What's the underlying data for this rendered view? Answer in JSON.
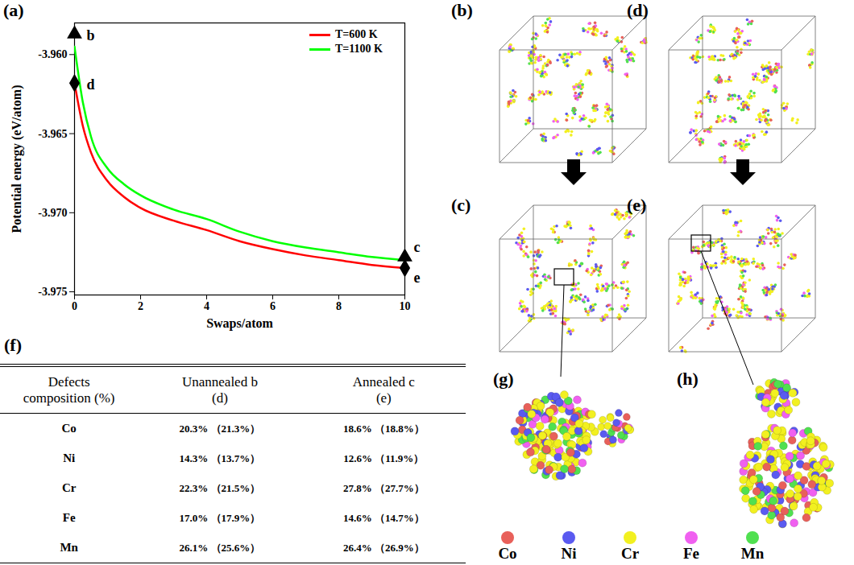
{
  "chart_data": {
    "type": "line",
    "panel": "(a)",
    "x_label": "Swaps/atom",
    "y_label": "Potential energy (eV/atom)",
    "xlim": [
      0,
      10
    ],
    "xticks": [
      0,
      2,
      4,
      6,
      8,
      10
    ],
    "ylim": [
      -3.9752,
      -3.958
    ],
    "yticks": [
      {
        "value": -3.96,
        "label": "-3.960"
      },
      -3.965,
      {
        "value": -3.97,
        "label": "-3.970"
      },
      -3.975
    ],
    "legend": "top-right",
    "series": [
      {
        "name": "T=600 K",
        "color": "#ff0000",
        "x": [
          0,
          0.25,
          0.5,
          1,
          1.5,
          2,
          3,
          4,
          5,
          6,
          7,
          8,
          9,
          10
        ],
        "values": [
          -3.9618,
          -3.9645,
          -3.9662,
          -3.968,
          -3.969,
          -3.9697,
          -3.9705,
          -3.9711,
          -3.9718,
          -3.9723,
          -3.9727,
          -3.973,
          -3.9733,
          -3.9735
        ]
      },
      {
        "name": "T=1100 K",
        "color": "#00ff00",
        "x": [
          0,
          0.25,
          0.5,
          1,
          1.5,
          2,
          3,
          4,
          5,
          6,
          7,
          8,
          9,
          10
        ],
        "values": [
          -3.9595,
          -3.963,
          -3.9652,
          -3.9672,
          -3.9682,
          -3.9689,
          -3.9698,
          -3.9704,
          -3.9712,
          -3.9718,
          -3.9722,
          -3.9725,
          -3.9728,
          -3.973
        ]
      }
    ],
    "annotations": [
      {
        "text": "b",
        "x": 0,
        "y": -3.9587,
        "marker": "triangle"
      },
      {
        "text": "d",
        "x": 0,
        "y": -3.9618,
        "marker": "diamond"
      },
      {
        "text": "c",
        "x": 10,
        "y": -3.9728,
        "marker": "triangle"
      },
      {
        "text": "e",
        "x": 10,
        "y": -3.9735,
        "marker": "diamond"
      }
    ]
  },
  "image_panels": [
    "(b)",
    "(c)",
    "(d)",
    "(e)",
    "(g)",
    "(h)"
  ],
  "atom_legend": [
    {
      "name": "Co",
      "color": "#e8605a"
    },
    {
      "name": "Ni",
      "color": "#5a5af0"
    },
    {
      "name": "Cr",
      "color": "#f2f020"
    },
    {
      "name": "Fe",
      "color": "#f060f0"
    },
    {
      "name": "Mn",
      "color": "#50e050"
    }
  ],
  "table": {
    "label": "(f)",
    "header": [
      "Defects composition (%)",
      "Unannealed b (d)",
      "Annealed c (e)"
    ],
    "rows": [
      [
        "Co",
        "20.3% （21.3%）",
        "18.6% （18.8%）"
      ],
      [
        "Ni",
        "14.3% （13.7%）",
        "12.6% （11.9%）"
      ],
      [
        "Cr",
        "22.3% （21.5%）",
        "27.8% （27.7%）"
      ],
      [
        "Fe",
        "17.0% （17.9%）",
        "14.6% （14.7%）"
      ],
      [
        "Mn",
        "26.1% （25.6%）",
        "26.4% （26.9%）"
      ]
    ]
  }
}
